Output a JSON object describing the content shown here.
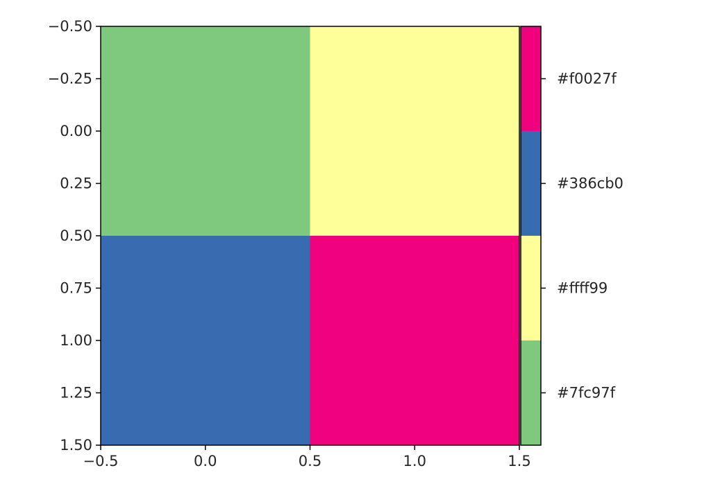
{
  "chart_data": {
    "type": "heatmap",
    "title": "",
    "xlabel": "",
    "ylabel": "",
    "x_ticks": [
      "−0.5",
      "0.0",
      "0.5",
      "1.0",
      "1.5"
    ],
    "y_ticks": [
      "−0.50",
      "−0.25",
      "0.00",
      "0.25",
      "0.50",
      "0.75",
      "1.00",
      "1.25",
      "1.50"
    ],
    "xlim": [
      -0.5,
      1.5
    ],
    "ylim": [
      1.5,
      -0.5
    ],
    "grid": false,
    "cells": [
      {
        "row": 0,
        "col": 0,
        "color": "#7fc97f"
      },
      {
        "row": 0,
        "col": 1,
        "color": "#ffff99"
      },
      {
        "row": 1,
        "col": 0,
        "color": "#386cb0"
      },
      {
        "row": 1,
        "col": 1,
        "color": "#f0027f"
      }
    ],
    "colorbar": {
      "placement": "right",
      "segments_top_to_bottom": [
        {
          "label": "#f0027f",
          "color": "#f0027f"
        },
        {
          "label": "#386cb0",
          "color": "#386cb0"
        },
        {
          "label": "#ffff99",
          "color": "#ffff99"
        },
        {
          "label": "#7fc97f",
          "color": "#7fc97f"
        }
      ]
    }
  }
}
